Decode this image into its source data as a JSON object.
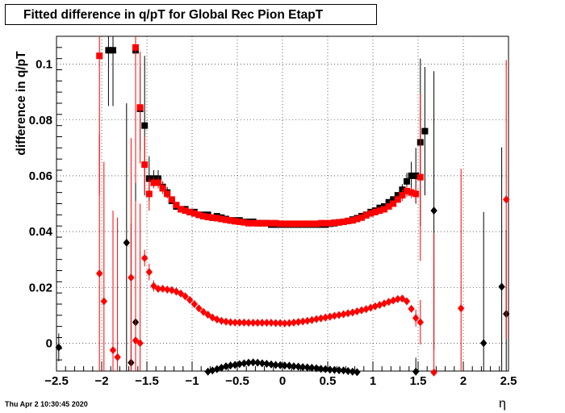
{
  "title": "Fitted difference in q/pT  for Global Rec Pion EtapT",
  "timestamp": "Thu Apr  2 10:30:45 2020",
  "colors": {
    "series_black": "#000000",
    "series_red": "#ff0000",
    "grid": "#000000"
  },
  "chart_data": {
    "type": "scatter",
    "title": "Fitted difference in q/pT  for Global Rec Pion EtapT",
    "xlabel": "η",
    "ylabel": "difference in q/pT",
    "xlim": [
      -2.5,
      2.5
    ],
    "ylim": [
      -0.01,
      0.11
    ],
    "grid": true,
    "x_ticks": [
      -2.5,
      -2,
      -1.5,
      -1,
      -0.5,
      0,
      0.5,
      1,
      1.5,
      2,
      2.5
    ],
    "x_tick_labels": [
      "−2.5",
      "−2",
      "−1.5",
      "−1",
      "−0.5",
      "0",
      "0.5",
      "1",
      "1.5",
      "2",
      "2.5"
    ],
    "y_ticks": [
      0,
      0.02,
      0.04,
      0.06,
      0.08,
      0.1
    ],
    "y_tick_labels": [
      "0",
      "0.02",
      "0.04",
      "0.06",
      "0.08",
      "0.1"
    ],
    "series": [
      {
        "marker": "square",
        "color": "#000000",
        "x": [
          -1.925,
          -1.875,
          -1.625,
          -1.575,
          -1.525,
          -1.475,
          -1.425,
          -1.375,
          -1.325,
          -1.275,
          -1.225,
          -1.175,
          -1.125,
          -1.075,
          -1.025,
          -0.975,
          -0.925,
          -0.875,
          -0.825,
          -0.775,
          -0.725,
          -0.675,
          -0.625,
          -0.575,
          -0.525,
          -0.475,
          -0.425,
          -0.375,
          -0.325,
          -0.275,
          -0.225,
          -0.175,
          -0.125,
          -0.075,
          -0.025,
          0.025,
          0.075,
          0.125,
          0.175,
          0.225,
          0.275,
          0.325,
          0.375,
          0.425,
          0.475,
          0.525,
          0.575,
          0.625,
          0.675,
          0.725,
          0.775,
          0.825,
          0.875,
          0.925,
          0.975,
          1.025,
          1.075,
          1.125,
          1.175,
          1.225,
          1.275,
          1.325,
          1.375,
          1.425,
          1.475,
          1.525,
          1.575
        ],
        "y": [
          0.105,
          0.105,
          0.105,
          0.084,
          0.078,
          0.059,
          0.059,
          0.059,
          0.056,
          0.054,
          0.051,
          0.049,
          0.048,
          0.048,
          0.047,
          0.047,
          0.046,
          0.046,
          0.046,
          0.045,
          0.0455,
          0.045,
          0.0445,
          0.044,
          0.044,
          0.044,
          0.0435,
          0.0435,
          0.0435,
          0.043,
          0.043,
          0.043,
          0.0425,
          0.0425,
          0.0425,
          0.0425,
          0.0425,
          0.0425,
          0.0425,
          0.0425,
          0.0425,
          0.0425,
          0.0425,
          0.0425,
          0.0425,
          0.0428,
          0.043,
          0.0433,
          0.0435,
          0.0438,
          0.0443,
          0.0448,
          0.0455,
          0.046,
          0.047,
          0.0475,
          0.0485,
          0.049,
          0.0505,
          0.0515,
          0.053,
          0.055,
          0.058,
          0.06,
          0.06,
          0.072,
          0.076
        ],
        "error": [
          0.02,
          0.02,
          0.02,
          0.015,
          0.025,
          0.008,
          0.003,
          0.003,
          0.002,
          0.002,
          0.001,
          0.001,
          0.001,
          0.001,
          0.0005,
          0.0005,
          0.0005,
          0.0005,
          0.0005,
          0.0005,
          0.0005,
          0.0005,
          0.0005,
          0.0005,
          0.0005,
          0.0005,
          0.0005,
          0.0005,
          0.0005,
          0.0005,
          0.0005,
          0.0005,
          0.0005,
          0.0005,
          0.0005,
          0.0005,
          0.0005,
          0.0005,
          0.0005,
          0.0005,
          0.0005,
          0.0005,
          0.0005,
          0.0005,
          0.0005,
          0.0005,
          0.0005,
          0.0005,
          0.0005,
          0.0005,
          0.0005,
          0.0005,
          0.0005,
          0.0005,
          0.0005,
          0.0005,
          0.0005,
          0.001,
          0.001,
          0.001,
          0.001,
          0.002,
          0.003,
          0.005,
          0.01,
          0.03,
          0.023
        ]
      },
      {
        "marker": "square",
        "color": "#ff0000",
        "x": [
          -2.025,
          -1.625,
          -1.575,
          -1.525,
          -1.475,
          -1.425,
          -1.375,
          -1.325,
          -1.275,
          -1.225,
          -1.175,
          -1.125,
          -1.075,
          -1.025,
          -0.975,
          -0.925,
          -0.875,
          -0.825,
          -0.775,
          -0.725,
          -0.675,
          -0.625,
          -0.575,
          -0.525,
          -0.475,
          -0.425,
          -0.375,
          -0.325,
          -0.275,
          -0.225,
          -0.175,
          -0.125,
          -0.075,
          -0.025,
          0.025,
          0.075,
          0.125,
          0.175,
          0.225,
          0.275,
          0.325,
          0.375,
          0.425,
          0.475,
          0.525,
          0.575,
          0.625,
          0.675,
          0.725,
          0.775,
          0.825,
          0.875,
          0.925,
          0.975,
          1.025,
          1.075,
          1.125,
          1.175,
          1.225,
          1.275,
          1.325,
          1.375,
          1.425,
          1.475,
          1.525
        ],
        "y": [
          0.103,
          0.106,
          0.0845,
          0.064,
          0.0535,
          0.0575,
          0.0575,
          0.0555,
          0.0535,
          0.0515,
          0.0495,
          0.048,
          0.0475,
          0.047,
          0.0465,
          0.046,
          0.0455,
          0.0452,
          0.045,
          0.0448,
          0.0445,
          0.0442,
          0.044,
          0.0437,
          0.0435,
          0.0433,
          0.043,
          0.043,
          0.043,
          0.043,
          0.043,
          0.043,
          0.043,
          0.0428,
          0.0428,
          0.0428,
          0.0428,
          0.0428,
          0.0428,
          0.0428,
          0.0428,
          0.0428,
          0.043,
          0.043,
          0.043,
          0.0432,
          0.0433,
          0.0435,
          0.0438,
          0.044,
          0.0445,
          0.045,
          0.0458,
          0.0465,
          0.047,
          0.0475,
          0.048,
          0.049,
          0.05,
          0.0515,
          0.053,
          0.0545,
          0.054,
          0.0535,
          0.0595
        ],
        "error": [
          0.05,
          0.05,
          0.02,
          0.01,
          0.006,
          0.002,
          0.002,
          0.002,
          0.001,
          0.001,
          0.001,
          0.001,
          0.001,
          0.0005,
          0.0005,
          0.0005,
          0.0005,
          0.0005,
          0.0005,
          0.0005,
          0.0005,
          0.0005,
          0.0005,
          0.0005,
          0.0005,
          0.0005,
          0.0005,
          0.0005,
          0.0005,
          0.0005,
          0.0005,
          0.0005,
          0.0005,
          0.0005,
          0.0005,
          0.0005,
          0.0005,
          0.0005,
          0.0005,
          0.0005,
          0.0005,
          0.0005,
          0.0005,
          0.0005,
          0.0005,
          0.0005,
          0.0005,
          0.0005,
          0.0005,
          0.0005,
          0.0005,
          0.0005,
          0.0005,
          0.0005,
          0.0005,
          0.0005,
          0.0005,
          0.001,
          0.001,
          0.001,
          0.002,
          0.002,
          0.002,
          0.003,
          0.03
        ]
      },
      {
        "marker": "diamond",
        "color": "#000000",
        "x": [
          -2.475,
          -1.725,
          -1.675,
          -1.625,
          -0.825,
          -0.775,
          -0.725,
          -0.675,
          -0.625,
          -0.575,
          -0.525,
          -0.475,
          -0.425,
          -0.375,
          -0.325,
          -0.275,
          -0.225,
          -0.175,
          -0.125,
          -0.075,
          -0.025,
          0.025,
          0.075,
          0.125,
          0.175,
          0.225,
          0.275,
          0.325,
          0.375,
          0.425,
          0.475,
          0.525,
          0.575,
          0.625,
          0.675,
          0.725,
          0.775,
          0.825,
          1.475,
          1.675,
          2.225,
          2.425,
          2.475
        ],
        "y": [
          -0.0015,
          0.036,
          -0.007,
          0.0075,
          -0.0102,
          -0.0098,
          -0.0093,
          -0.0088,
          -0.0083,
          -0.008,
          -0.0078,
          -0.0075,
          -0.0072,
          -0.007,
          -0.0069,
          -0.007,
          -0.0072,
          -0.0074,
          -0.0076,
          -0.0078,
          -0.0079,
          -0.008,
          -0.0081,
          -0.0083,
          -0.0084,
          -0.0086,
          -0.0087,
          -0.0088,
          -0.009,
          -0.0092,
          -0.0093,
          -0.0095,
          -0.0096,
          -0.0097,
          -0.0098,
          -0.01,
          -0.0102,
          -0.0104,
          -0.0102,
          0.0475,
          0.0,
          0.0202,
          0.0105
        ],
        "error": [
          0.005,
          0.05,
          0.05,
          0.05,
          0.0005,
          0.0005,
          0.0005,
          0.0005,
          0.0005,
          0.0005,
          0.0005,
          0.0005,
          0.0005,
          0.0005,
          0.0005,
          0.0005,
          0.0005,
          0.0005,
          0.0005,
          0.0005,
          0.0005,
          0.0005,
          0.0005,
          0.0005,
          0.0005,
          0.0005,
          0.0005,
          0.0005,
          0.0005,
          0.0005,
          0.0005,
          0.0005,
          0.0005,
          0.0005,
          0.0005,
          0.0005,
          0.0005,
          0.0005,
          0.005,
          0.05,
          0.047,
          0.05,
          0.03
        ]
      },
      {
        "marker": "diamond",
        "color": "#ff0000",
        "x": [
          -2.025,
          -1.975,
          -1.875,
          -1.825,
          -1.675,
          -1.625,
          -1.575,
          -1.525,
          -1.475,
          -1.425,
          -1.375,
          -1.325,
          -1.275,
          -1.225,
          -1.175,
          -1.125,
          -1.075,
          -1.025,
          -0.975,
          -0.925,
          -0.875,
          -0.825,
          -0.775,
          -0.725,
          -0.675,
          -0.625,
          -0.575,
          -0.525,
          -0.475,
          -0.425,
          -0.375,
          -0.325,
          -0.275,
          -0.225,
          -0.175,
          -0.125,
          -0.075,
          -0.025,
          0.025,
          0.075,
          0.125,
          0.175,
          0.225,
          0.275,
          0.325,
          0.375,
          0.425,
          0.475,
          0.525,
          0.575,
          0.625,
          0.675,
          0.725,
          0.775,
          0.825,
          0.875,
          0.925,
          0.975,
          1.025,
          1.075,
          1.125,
          1.175,
          1.225,
          1.275,
          1.325,
          1.375,
          1.425,
          1.475,
          1.525,
          1.675,
          1.975,
          2.475
        ],
        "y": [
          0.025,
          0.015,
          -0.0025,
          -0.005,
          0.0235,
          0.001,
          0.0,
          0.0305,
          0.0255,
          0.0205,
          0.0195,
          0.0195,
          0.0192,
          0.019,
          0.0185,
          0.0178,
          0.0168,
          0.0155,
          0.014,
          0.0125,
          0.0112,
          0.0102,
          0.0092,
          0.0085,
          0.008,
          0.0077,
          0.0075,
          0.0074,
          0.0074,
          0.0074,
          0.0073,
          0.0073,
          0.0073,
          0.0073,
          0.0073,
          0.0073,
          0.0072,
          0.0072,
          0.0071,
          0.0072,
          0.0074,
          0.0076,
          0.0078,
          0.008,
          0.0083,
          0.0086,
          0.0089,
          0.0092,
          0.0095,
          0.0098,
          0.0101,
          0.0104,
          0.0107,
          0.011,
          0.0114,
          0.0118,
          0.0122,
          0.0127,
          0.0132,
          0.0137,
          0.0142,
          0.0148,
          0.0153,
          0.0158,
          0.016,
          0.015,
          0.0123,
          0.009,
          0.0075,
          -0.0105,
          0.0125,
          0.0515
        ],
        "error": [
          0.05,
          0.05,
          0.05,
          0.05,
          0.05,
          0.05,
          0.05,
          0.003,
          0.003,
          0.002,
          0.001,
          0.001,
          0.001,
          0.001,
          0.0005,
          0.0005,
          0.0005,
          0.0005,
          0.0005,
          0.0005,
          0.0005,
          0.0005,
          0.0005,
          0.0005,
          0.0005,
          0.0005,
          0.0005,
          0.0005,
          0.0005,
          0.0005,
          0.0005,
          0.0005,
          0.0005,
          0.0005,
          0.0005,
          0.0005,
          0.0005,
          0.0005,
          0.0005,
          0.0005,
          0.0005,
          0.0005,
          0.0005,
          0.0005,
          0.0005,
          0.0005,
          0.0005,
          0.0005,
          0.0005,
          0.0005,
          0.0005,
          0.0005,
          0.0005,
          0.0005,
          0.0005,
          0.0005,
          0.0005,
          0.0005,
          0.0005,
          0.0005,
          0.0005,
          0.0005,
          0.0005,
          0.0005,
          0.0005,
          0.001,
          0.001,
          0.003,
          0.008,
          0.05,
          0.05,
          0.05
        ]
      }
    ]
  }
}
